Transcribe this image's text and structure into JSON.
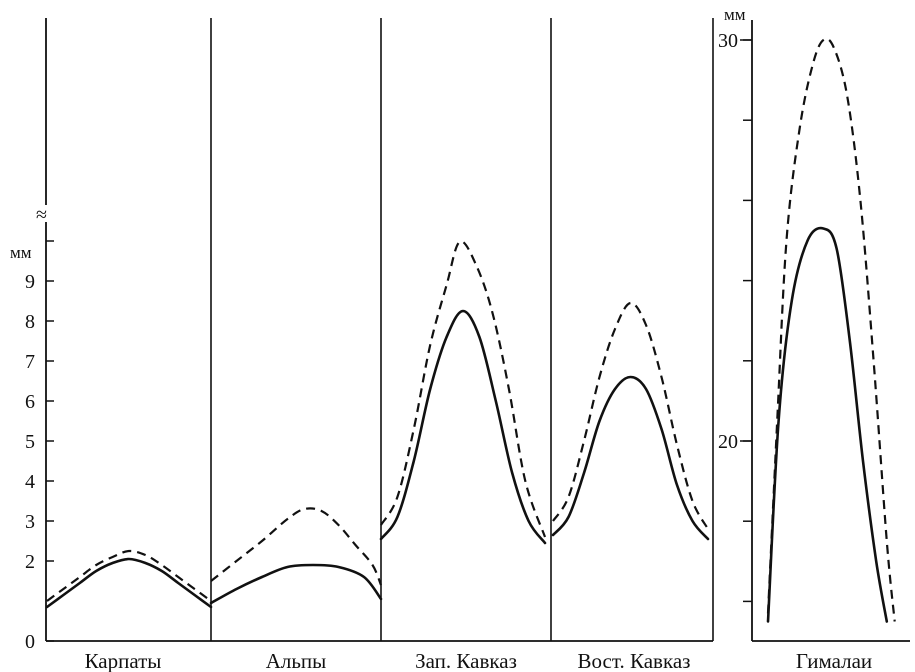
{
  "chart_data": {
    "type": "line",
    "y_unit": "мм",
    "left_axis": {
      "ticks": [
        0,
        2,
        3,
        4,
        5,
        6,
        7,
        8,
        9
      ],
      "range": [
        0,
        9.8
      ],
      "break_symbol": "≈"
    },
    "right_axis": {
      "ticks": [
        20,
        30
      ],
      "range": [
        15,
        30.5
      ]
    },
    "series_styles": [
      "solid",
      "dashed"
    ],
    "panels": [
      {
        "label": "Карпаты",
        "axis": "left",
        "solid": [
          [
            0.0,
            0.85
          ],
          [
            0.1,
            1.15
          ],
          [
            0.2,
            1.45
          ],
          [
            0.3,
            1.75
          ],
          [
            0.4,
            1.95
          ],
          [
            0.5,
            2.05
          ],
          [
            0.6,
            1.95
          ],
          [
            0.7,
            1.75
          ],
          [
            0.8,
            1.45
          ],
          [
            0.9,
            1.15
          ],
          [
            1.0,
            0.85
          ]
        ],
        "dashed": [
          [
            0.0,
            1.0
          ],
          [
            0.1,
            1.3
          ],
          [
            0.2,
            1.6
          ],
          [
            0.3,
            1.9
          ],
          [
            0.4,
            2.1
          ],
          [
            0.5,
            2.25
          ],
          [
            0.6,
            2.15
          ],
          [
            0.7,
            1.9
          ],
          [
            0.8,
            1.6
          ],
          [
            0.9,
            1.3
          ],
          [
            1.0,
            1.0
          ]
        ]
      },
      {
        "label": "Альпы",
        "axis": "left",
        "solid": [
          [
            0.0,
            0.95
          ],
          [
            0.15,
            1.3
          ],
          [
            0.3,
            1.6
          ],
          [
            0.45,
            1.85
          ],
          [
            0.6,
            1.9
          ],
          [
            0.75,
            1.85
          ],
          [
            0.9,
            1.6
          ],
          [
            1.0,
            1.05
          ]
        ],
        "dashed": [
          [
            0.0,
            1.5
          ],
          [
            0.15,
            2.0
          ],
          [
            0.3,
            2.5
          ],
          [
            0.45,
            3.05
          ],
          [
            0.55,
            3.3
          ],
          [
            0.65,
            3.25
          ],
          [
            0.75,
            2.9
          ],
          [
            0.85,
            2.4
          ],
          [
            0.95,
            1.9
          ],
          [
            1.0,
            1.4
          ]
        ]
      },
      {
        "label": "Зап. Кавказ",
        "axis": "left",
        "solid": [
          [
            0.0,
            2.55
          ],
          [
            0.1,
            3.1
          ],
          [
            0.2,
            4.5
          ],
          [
            0.3,
            6.3
          ],
          [
            0.4,
            7.6
          ],
          [
            0.5,
            8.25
          ],
          [
            0.6,
            7.6
          ],
          [
            0.7,
            6.0
          ],
          [
            0.8,
            4.2
          ],
          [
            0.9,
            3.0
          ],
          [
            1.0,
            2.45
          ]
        ],
        "dashed": [
          [
            0.0,
            2.9
          ],
          [
            0.1,
            3.6
          ],
          [
            0.2,
            5.3
          ],
          [
            0.3,
            7.4
          ],
          [
            0.4,
            8.9
          ],
          [
            0.48,
            9.98
          ],
          [
            0.58,
            9.4
          ],
          [
            0.68,
            8.2
          ],
          [
            0.78,
            6.3
          ],
          [
            0.88,
            4.0
          ],
          [
            1.0,
            2.6
          ]
        ]
      },
      {
        "label": "Вост. Кавказ",
        "axis": "left",
        "solid": [
          [
            0.0,
            2.65
          ],
          [
            0.1,
            3.1
          ],
          [
            0.2,
            4.2
          ],
          [
            0.3,
            5.5
          ],
          [
            0.4,
            6.3
          ],
          [
            0.5,
            6.6
          ],
          [
            0.6,
            6.3
          ],
          [
            0.7,
            5.3
          ],
          [
            0.8,
            3.9
          ],
          [
            0.9,
            3.0
          ],
          [
            1.0,
            2.55
          ]
        ],
        "dashed": [
          [
            0.0,
            3.0
          ],
          [
            0.1,
            3.6
          ],
          [
            0.2,
            5.0
          ],
          [
            0.3,
            6.6
          ],
          [
            0.4,
            7.8
          ],
          [
            0.5,
            8.45
          ],
          [
            0.6,
            7.9
          ],
          [
            0.7,
            6.6
          ],
          [
            0.8,
            4.9
          ],
          [
            0.9,
            3.5
          ],
          [
            1.0,
            2.8
          ]
        ]
      },
      {
        "label": "Гималаи",
        "axis": "right",
        "solid": [
          [
            0.0,
            15.5
          ],
          [
            0.08,
            20.5
          ],
          [
            0.18,
            23.5
          ],
          [
            0.3,
            25.0
          ],
          [
            0.42,
            25.3
          ],
          [
            0.52,
            24.8
          ],
          [
            0.62,
            22.5
          ],
          [
            0.72,
            19.5
          ],
          [
            0.82,
            17.0
          ],
          [
            0.9,
            15.5
          ]
        ],
        "dashed": [
          [
            0.0,
            15.7
          ],
          [
            0.07,
            20.5
          ],
          [
            0.14,
            25.0
          ],
          [
            0.24,
            27.8
          ],
          [
            0.34,
            29.4
          ],
          [
            0.42,
            30.0
          ],
          [
            0.5,
            29.8
          ],
          [
            0.6,
            28.6
          ],
          [
            0.7,
            26.0
          ],
          [
            0.8,
            22.0
          ],
          [
            0.9,
            17.5
          ],
          [
            0.96,
            15.5
          ]
        ]
      }
    ]
  }
}
